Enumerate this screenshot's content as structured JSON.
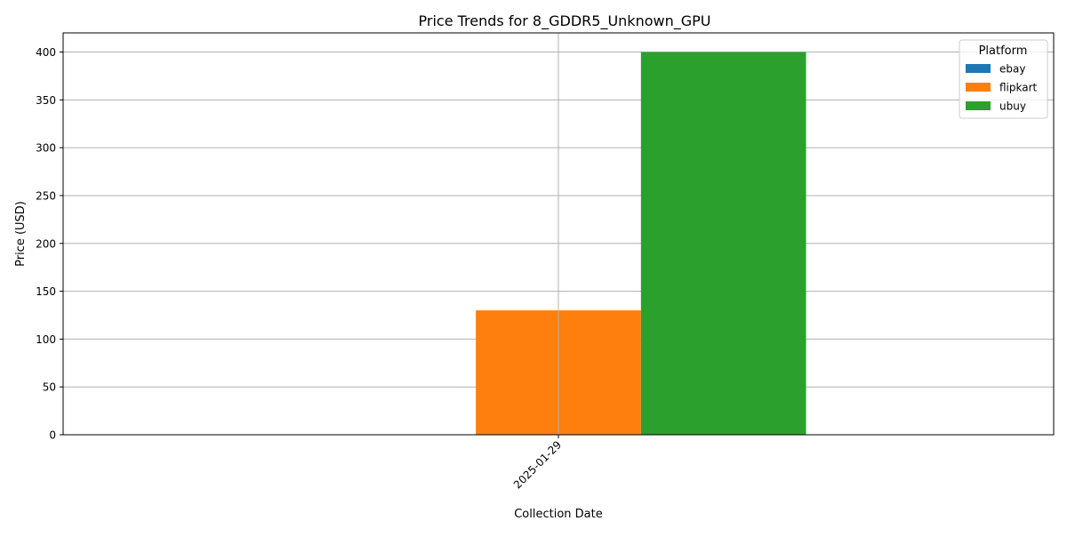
{
  "chart_data": {
    "type": "bar",
    "title": "Price Trends for 8_GDDR5_Unknown_GPU",
    "xlabel": "Collection Date",
    "ylabel": "Price (USD)",
    "categories": [
      "2025-01-29"
    ],
    "series": [
      {
        "name": "ebay",
        "values": [
          0
        ],
        "color": "#1f77b4"
      },
      {
        "name": "flipkart",
        "values": [
          130
        ],
        "color": "#ff7f0e"
      },
      {
        "name": "ubuy",
        "values": [
          400
        ],
        "color": "#2ca02c"
      }
    ],
    "ylim": [
      0,
      420
    ],
    "yticks": [
      0,
      50,
      100,
      150,
      200,
      250,
      300,
      350,
      400
    ],
    "grid": true,
    "legend": {
      "title": "Platform",
      "placement": "top-right"
    }
  }
}
